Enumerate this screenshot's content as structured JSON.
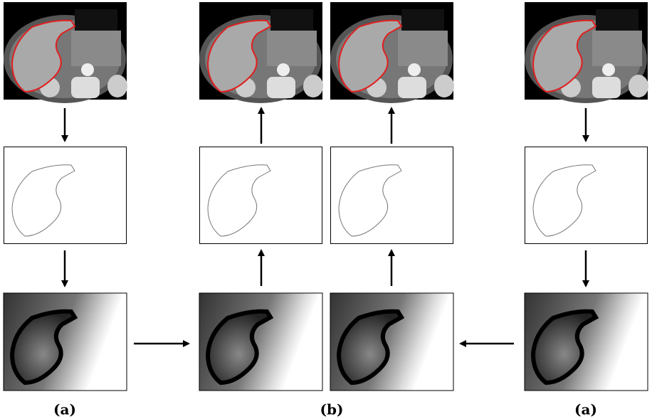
{
  "captions": [
    "(a)",
    "(b)",
    "(a)"
  ]
}
